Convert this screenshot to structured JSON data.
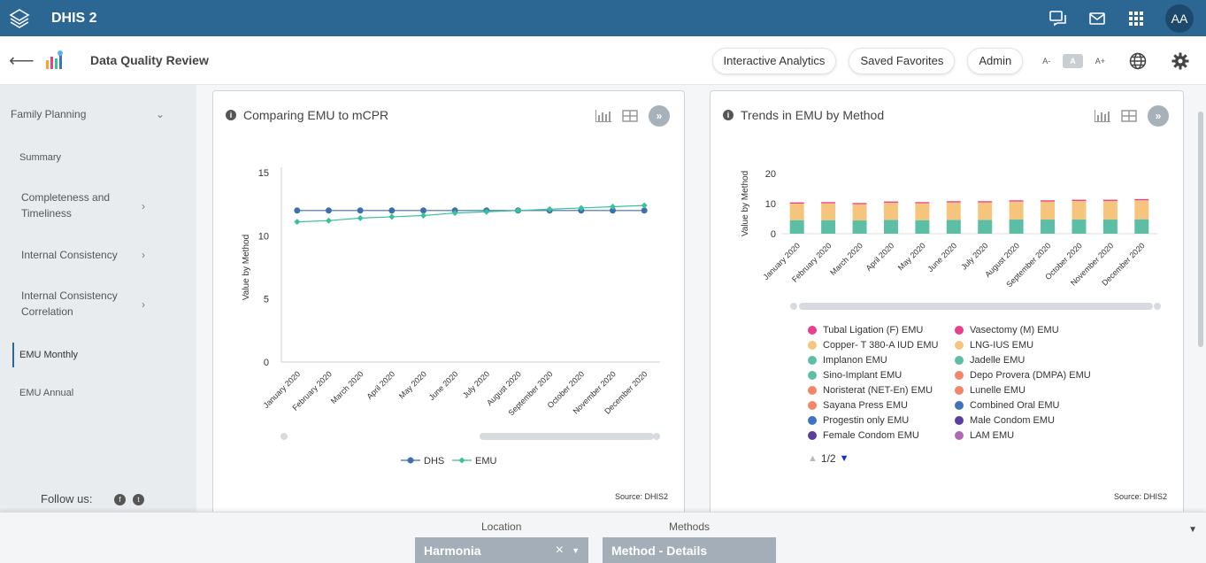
{
  "topbar": {
    "brand": "DHIS 2",
    "avatar": "AA"
  },
  "header": {
    "app_title": "Data Quality Review",
    "buttons": [
      "Interactive Analytics",
      "Saved Favorites",
      "Admin"
    ],
    "font_sizes": [
      "A-",
      "A",
      "A+"
    ]
  },
  "sidebar": {
    "section": "Family Planning",
    "items": [
      {
        "label": "Summary"
      },
      {
        "label": "Completeness and Timeliness"
      },
      {
        "label": "Internal Consistency"
      },
      {
        "label": "Internal Consistency Correlation"
      },
      {
        "label": "EMU Monthly"
      },
      {
        "label": "EMU Annual"
      }
    ],
    "follow_label": "Follow us:",
    "social": [
      "f",
      "t"
    ]
  },
  "card1": {
    "title": "Comparing EMU to mCPR",
    "source": "Source: DHIS2",
    "more": "»"
  },
  "card2": {
    "title": "Trends in EMU by Method",
    "source": "Source: DHIS2",
    "more": "»",
    "legend_page": "1/2",
    "legend": [
      {
        "name": "Tubal Ligation (F) EMU",
        "color": "#e8408a"
      },
      {
        "name": "Vasectomy (M) EMU",
        "color": "#e8408a"
      },
      {
        "name": "Copper- T 380-A IUD EMU",
        "color": "#f5c57e"
      },
      {
        "name": "LNG-IUS EMU",
        "color": "#f5c57e"
      },
      {
        "name": "Implanon EMU",
        "color": "#5cbfa5"
      },
      {
        "name": "Jadelle EMU",
        "color": "#5cbfa5"
      },
      {
        "name": "Sino-Implant EMU",
        "color": "#5cbfa5"
      },
      {
        "name": "Depo Provera (DMPA) EMU",
        "color": "#f5856a"
      },
      {
        "name": "Noristerat (NET-En) EMU",
        "color": "#f5856a"
      },
      {
        "name": "Lunelle EMU",
        "color": "#f5856a"
      },
      {
        "name": "Sayana Press EMU",
        "color": "#f5856a"
      },
      {
        "name": "Combined Oral EMU",
        "color": "#3f72bf"
      },
      {
        "name": "Progestin only EMU",
        "color": "#3f72bf"
      },
      {
        "name": "Male Condom EMU",
        "color": "#5a3f9e"
      },
      {
        "name": "Female Condom EMU",
        "color": "#5a3f9e"
      },
      {
        "name": "LAM EMU",
        "color": "#b368b5"
      }
    ]
  },
  "filters": {
    "location_label": "Location",
    "location_value": "Harmonia",
    "location_clear": "×",
    "methods_label": "Methods",
    "methods_value": "Method - Details"
  },
  "chart_data": [
    {
      "type": "line",
      "title": "Comparing EMU to mCPR",
      "ylabel": "Value by Method",
      "ylim": [
        0,
        15
      ],
      "yticks": [
        0,
        5,
        10,
        15
      ],
      "categories": [
        "January 2020",
        "February 2020",
        "March 2020",
        "April 2020",
        "May 2020",
        "June 2020",
        "July 2020",
        "August 2020",
        "September 2020",
        "October 2020",
        "November 2020",
        "December 2020"
      ],
      "series": [
        {
          "name": "DHS",
          "color": "#3f6eb0",
          "values": [
            12,
            12,
            12,
            12,
            12,
            12,
            12,
            12,
            12,
            12,
            12,
            12
          ]
        },
        {
          "name": "EMU",
          "color": "#39c29a",
          "values": [
            11.1,
            11.2,
            11.4,
            11.5,
            11.6,
            11.8,
            11.9,
            12.0,
            12.1,
            12.2,
            12.3,
            12.4
          ]
        }
      ],
      "legend": "bottom"
    },
    {
      "type": "bar",
      "stacked": true,
      "title": "Trends in EMU by Method",
      "ylabel": "Value by Method",
      "ylim": [
        0,
        20
      ],
      "yticks": [
        0,
        10,
        20
      ],
      "categories": [
        "January 2020",
        "February 2020",
        "March 2020",
        "April 2020",
        "May 2020",
        "June 2020",
        "July 2020",
        "August 2020",
        "September 2020",
        "October 2020",
        "November 2020",
        "December 2020"
      ],
      "series": [
        {
          "name": "Implanon EMU",
          "color": "#5cbfa5",
          "values": [
            4.5,
            4.5,
            4.4,
            4.6,
            4.5,
            4.6,
            4.6,
            4.7,
            4.7,
            4.7,
            4.7,
            4.8
          ]
        },
        {
          "name": "Copper- T 380-A IUD EMU",
          "color": "#f5c57e",
          "values": [
            5.5,
            5.6,
            5.4,
            5.7,
            5.6,
            5.8,
            5.8,
            6.0,
            6.0,
            6.2,
            6.2,
            6.3
          ]
        },
        {
          "name": "Tubal Ligation (F) EMU",
          "color": "#e8408a",
          "values": [
            0.4,
            0.4,
            0.4,
            0.4,
            0.4,
            0.4,
            0.4,
            0.4,
            0.4,
            0.4,
            0.4,
            0.4
          ]
        }
      ],
      "legend": "bottom"
    }
  ]
}
